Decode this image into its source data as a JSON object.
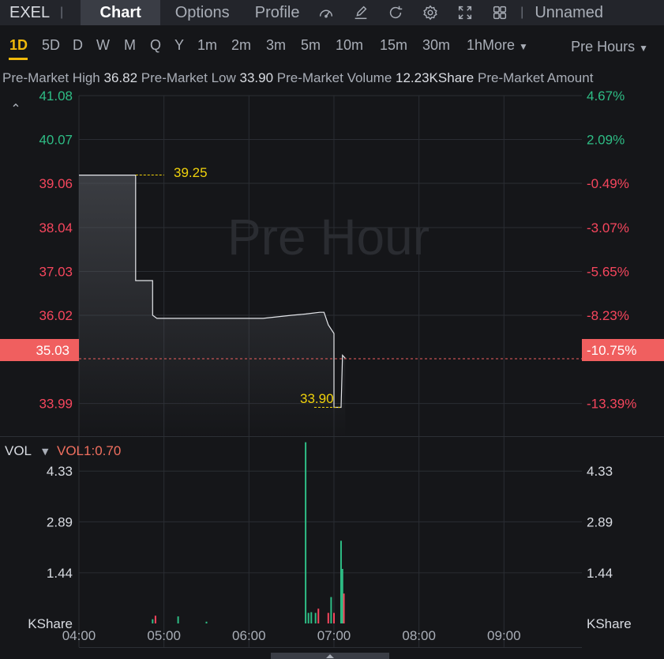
{
  "header": {
    "ticker": "EXEL",
    "tabs": [
      "Chart",
      "Options",
      "Profile"
    ],
    "layout_name": "Unnamed",
    "tools": [
      "draw-tool-icon",
      "pencil-icon",
      "refresh-icon",
      "gear-icon",
      "fullscreen-icon",
      "layout-grid-icon"
    ]
  },
  "periods": [
    "1D",
    "5D",
    "D",
    "W",
    "M",
    "Q",
    "Y",
    "1m",
    "2m",
    "3m",
    "5m",
    "10m",
    "15m",
    "30m",
    "1h"
  ],
  "selected_period": "1D",
  "more_label": "More",
  "session_label": "Pre Hours",
  "info": {
    "high_label": "Pre-Market High",
    "high_value": "36.82",
    "low_label": "Pre-Market Low",
    "low_value": "33.90",
    "volume_label": "Pre-Market Volume",
    "volume_value": "12.23KShare",
    "amount_label": "Pre-Market Amount"
  },
  "watermark": "Pre Hour",
  "current_price": "35.03",
  "current_change": "-10.75%",
  "high_marker": "39.25",
  "low_marker": "33.90",
  "volume_panel": {
    "label": "VOL",
    "indicator": "VOL1:0.70",
    "unit": "KShare"
  },
  "colors": {
    "up": "#2ebd85",
    "down": "#f6465d",
    "accent": "#f0b90b",
    "price_line": "#e4e6ea"
  },
  "chart_data": [
    {
      "type": "line",
      "x_ticks": [
        "04:00",
        "05:00",
        "06:00",
        "07:00",
        "08:00",
        "09:00"
      ],
      "y_ticks": [
        "41.08",
        "40.07",
        "39.06",
        "38.04",
        "37.03",
        "36.02",
        "33.99"
      ],
      "y_ticks_right": [
        "4.67%",
        "2.09%",
        "-0.49%",
        "-3.07%",
        "-5.65%",
        "-8.23%",
        "-13.39%"
      ],
      "ylim": [
        33.2,
        41.08
      ],
      "x": [
        "04:00",
        "04:40",
        "04:40",
        "04:52",
        "04:52",
        "04:55",
        "05:30",
        "06:10",
        "06:30",
        "06:40",
        "06:50",
        "06:53",
        "06:56",
        "07:00",
        "07:00",
        "07:05",
        "07:06",
        "07:08"
      ],
      "values": [
        39.25,
        39.25,
        36.82,
        36.82,
        36.02,
        35.95,
        35.95,
        35.95,
        36.02,
        36.05,
        36.09,
        36.09,
        35.8,
        35.6,
        33.9,
        33.9,
        35.1,
        35.03
      ]
    },
    {
      "type": "bar",
      "y_ticks": [
        "4.33",
        "2.89",
        "1.44"
      ],
      "ylim": [
        0,
        5.3
      ],
      "bars": [
        {
          "x": "04:52",
          "value": 0.12,
          "dir": "up"
        },
        {
          "x": "04:54",
          "value": 0.22,
          "dir": "down"
        },
        {
          "x": "05:10",
          "value": 0.2,
          "dir": "up"
        },
        {
          "x": "05:30",
          "value": 0.05,
          "dir": "up"
        },
        {
          "x": "06:40",
          "value": 5.15,
          "dir": "up"
        },
        {
          "x": "06:42",
          "value": 0.3,
          "dir": "up"
        },
        {
          "x": "06:44",
          "value": 0.32,
          "dir": "up"
        },
        {
          "x": "06:47",
          "value": 0.3,
          "dir": "up"
        },
        {
          "x": "06:49",
          "value": 0.42,
          "dir": "down"
        },
        {
          "x": "06:56",
          "value": 0.3,
          "dir": "down"
        },
        {
          "x": "06:58",
          "value": 0.75,
          "dir": "up"
        },
        {
          "x": "07:00",
          "value": 0.3,
          "dir": "down"
        },
        {
          "x": "07:05",
          "value": 2.35,
          "dir": "up"
        },
        {
          "x": "07:06",
          "value": 1.55,
          "dir": "up"
        },
        {
          "x": "07:07",
          "value": 0.85,
          "dir": "down"
        }
      ]
    }
  ]
}
